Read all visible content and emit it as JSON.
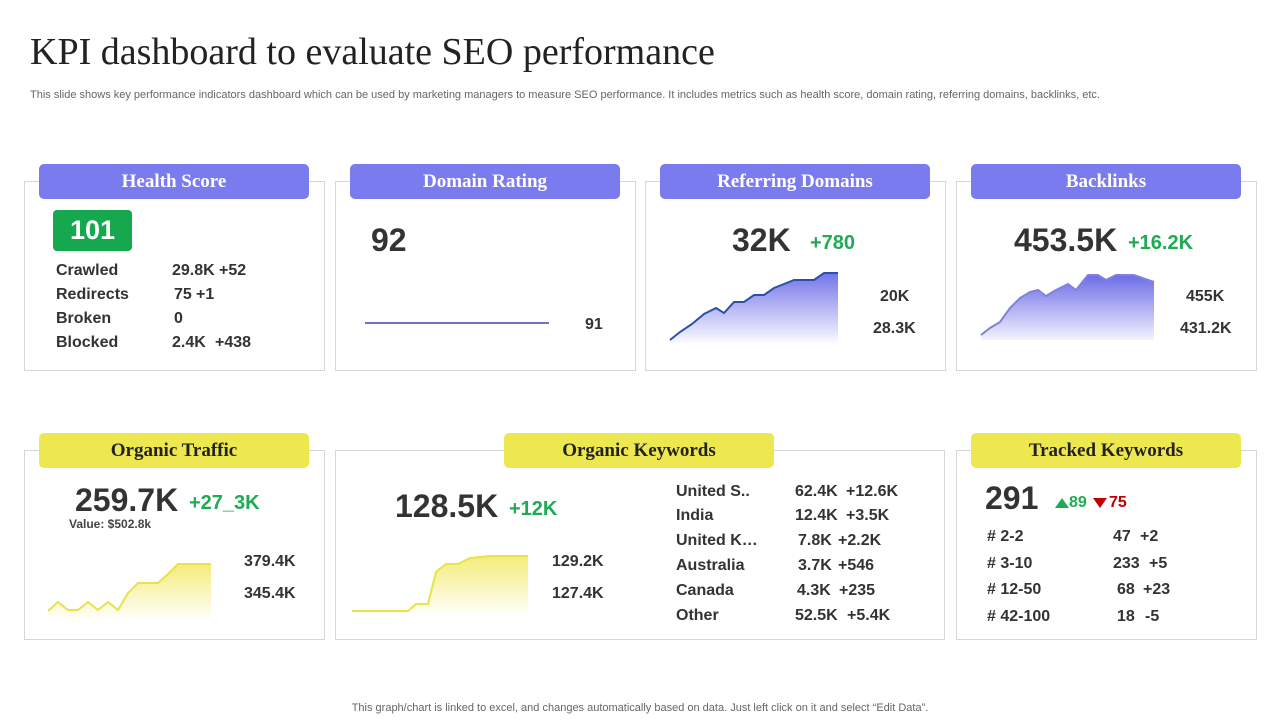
{
  "header": {
    "title": "KPI dashboard to evaluate SEO performance",
    "subtitle": "This slide shows key performance indicators dashboard which can be used by marketing managers to measure SEO performance. It includes metrics such as health score, domain rating, referring domains, backlinks, etc."
  },
  "health": {
    "label": "Health Score",
    "score": "101",
    "rows": [
      {
        "name": "Crawled",
        "value": "29.8K",
        "delta": "+52"
      },
      {
        "name": "Redirects",
        "value": "75",
        "delta": "+1"
      },
      {
        "name": "Broken",
        "value": "0",
        "delta": ""
      },
      {
        "name": "Blocked",
        "value": "2.4K",
        "delta": "+438"
      }
    ]
  },
  "domain": {
    "label": "Domain Rating",
    "value": "92",
    "side": "91"
  },
  "referring": {
    "label": "Referring Domains",
    "value": "32K",
    "delta": "+780",
    "max": "20K",
    "min": "28.3K"
  },
  "backlinks": {
    "label": "Backlinks",
    "value": "453.5K",
    "delta": "+16.2K",
    "max": "455K",
    "min": "431.2K"
  },
  "traffic": {
    "label": "Organic Traffic",
    "value": "259.7K",
    "delta": "+27_3K",
    "note": "Value: $502.8k",
    "max": "379.4K",
    "min": "345.4K"
  },
  "keywords": {
    "label": "Organic Keywords",
    "value": "128.5K",
    "delta": "+12K",
    "max": "129.2K",
    "min": "127.4K",
    "countries": [
      {
        "name": "United S..",
        "value": "62.4K",
        "delta": "+12.6K"
      },
      {
        "name": "India",
        "value": "12.4K",
        "delta": "+3.5K"
      },
      {
        "name": "United K…",
        "value": "7.8K",
        "delta": "+2.2K"
      },
      {
        "name": "Australia",
        "value": "3.7K",
        "delta": "+546"
      },
      {
        "name": "Canada",
        "value": "4.3K",
        "delta": "+235"
      },
      {
        "name": "Other",
        "value": "52.5K",
        "delta": "+5.4K"
      }
    ]
  },
  "tracked": {
    "label": "Tracked Keywords",
    "value": "291",
    "up": "89",
    "down": "75",
    "rows": [
      {
        "name": "# 2-2",
        "value": "47",
        "delta": "+2"
      },
      {
        "name": "# 3-10",
        "value": "233",
        "delta": "+5"
      },
      {
        "name": "# 12-50",
        "value": "68",
        "delta": "+23"
      },
      {
        "name": "# 42-100",
        "value": "18",
        "delta": "-5"
      }
    ]
  },
  "footer": "This graph/chart is linked to excel,  and changes automatically based on data. Just left click on it and select “Edit Data”.",
  "colors": {
    "blue_tab": "#7b7bf0",
    "yellow_tab": "#ede84f",
    "positive": "#1faa54",
    "negative": "#c00000"
  }
}
